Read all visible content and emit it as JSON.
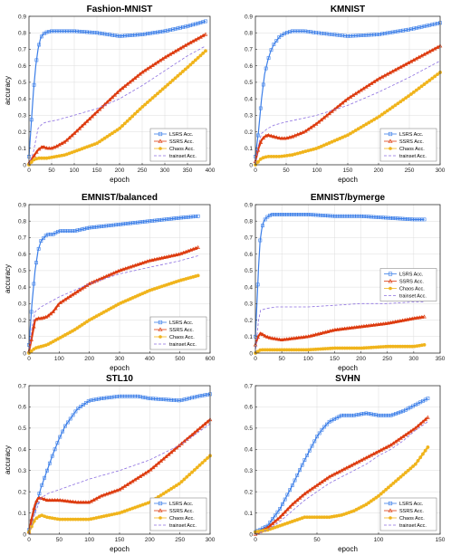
{
  "colors": {
    "lsrs": "#3b7ee8",
    "ssrs": "#dd3b0f",
    "chaos": "#f0b41c",
    "trainset": "#8c6fe0",
    "grid": "#dcdcdc",
    "axis": "#333333"
  },
  "legend_labels": [
    "LSRS Acc.",
    "SSRS Acc.",
    "Chaos Acc.",
    "trainset Acc."
  ],
  "chart_data": [
    {
      "type": "line",
      "title": "Fashion-MNIST",
      "xlabel": "epoch",
      "ylabel": "accuracy",
      "xlim": [
        0,
        400
      ],
      "ylim": [
        0,
        0.9
      ],
      "xticks": [
        0,
        50,
        100,
        150,
        200,
        250,
        300,
        350,
        400
      ],
      "yticks": [
        0,
        0.1,
        0.2,
        0.3,
        0.4,
        0.5,
        0.6,
        0.7,
        0.8,
        0.9
      ],
      "grid": true,
      "legend_position": "lower-right",
      "series": [
        {
          "name": "LSRS Acc.",
          "color_key": "lsrs",
          "marker": "square",
          "x": [
            0,
            5,
            10,
            15,
            20,
            25,
            30,
            40,
            50,
            60,
            70,
            80,
            100,
            150,
            200,
            250,
            300,
            350,
            390
          ],
          "y": [
            0.05,
            0.25,
            0.45,
            0.6,
            0.7,
            0.76,
            0.79,
            0.805,
            0.81,
            0.81,
            0.81,
            0.81,
            0.81,
            0.8,
            0.78,
            0.79,
            0.81,
            0.84,
            0.87
          ]
        },
        {
          "name": "SSRS Acc.",
          "color_key": "ssrs",
          "marker": "triangle",
          "x": [
            0,
            10,
            20,
            30,
            40,
            50,
            60,
            80,
            100,
            150,
            200,
            250,
            300,
            350,
            390
          ],
          "y": [
            0.01,
            0.05,
            0.09,
            0.11,
            0.1,
            0.1,
            0.11,
            0.14,
            0.19,
            0.32,
            0.45,
            0.56,
            0.65,
            0.73,
            0.79
          ]
        },
        {
          "name": "Chaos Acc.",
          "color_key": "chaos",
          "marker": "star",
          "x": [
            0,
            10,
            20,
            40,
            60,
            80,
            100,
            150,
            200,
            250,
            300,
            350,
            390
          ],
          "y": [
            0.0,
            0.03,
            0.04,
            0.04,
            0.05,
            0.06,
            0.08,
            0.13,
            0.22,
            0.35,
            0.47,
            0.59,
            0.69
          ]
        },
        {
          "name": "trainset Acc.",
          "color_key": "trainset",
          "marker": "dash",
          "x": [
            0,
            10,
            20,
            30,
            40,
            60,
            100,
            150,
            200,
            250,
            300,
            350,
            390
          ],
          "y": [
            0.0,
            0.08,
            0.22,
            0.25,
            0.26,
            0.27,
            0.3,
            0.34,
            0.4,
            0.48,
            0.57,
            0.66,
            0.72
          ]
        }
      ]
    },
    {
      "type": "line",
      "title": "KMNIST",
      "xlabel": "epoch",
      "ylabel": "",
      "xlim": [
        0,
        300
      ],
      "ylim": [
        0,
        0.9
      ],
      "xticks": [
        0,
        50,
        100,
        150,
        200,
        250,
        300
      ],
      "yticks": [
        0,
        0.1,
        0.2,
        0.3,
        0.4,
        0.5,
        0.6,
        0.7,
        0.8,
        0.9
      ],
      "grid": true,
      "legend_position": "lower-right",
      "series": [
        {
          "name": "LSRS Acc.",
          "color_key": "lsrs",
          "marker": "square",
          "x": [
            0,
            5,
            10,
            15,
            20,
            25,
            30,
            40,
            50,
            60,
            70,
            80,
            100,
            150,
            200,
            250,
            300
          ],
          "y": [
            0.05,
            0.2,
            0.4,
            0.55,
            0.63,
            0.69,
            0.73,
            0.78,
            0.8,
            0.81,
            0.81,
            0.81,
            0.8,
            0.78,
            0.79,
            0.82,
            0.86
          ]
        },
        {
          "name": "SSRS Acc.",
          "color_key": "ssrs",
          "marker": "triangle",
          "x": [
            0,
            5,
            10,
            15,
            20,
            30,
            40,
            50,
            60,
            80,
            100,
            150,
            200,
            250,
            300
          ],
          "y": [
            0.02,
            0.1,
            0.15,
            0.17,
            0.18,
            0.17,
            0.16,
            0.16,
            0.17,
            0.2,
            0.25,
            0.4,
            0.52,
            0.62,
            0.72
          ]
        },
        {
          "name": "Chaos Acc.",
          "color_key": "chaos",
          "marker": "star",
          "x": [
            0,
            10,
            20,
            40,
            60,
            80,
            100,
            150,
            200,
            250,
            300
          ],
          "y": [
            0.0,
            0.04,
            0.05,
            0.05,
            0.06,
            0.08,
            0.1,
            0.18,
            0.29,
            0.42,
            0.56
          ]
        },
        {
          "name": "trainset Acc.",
          "color_key": "trainset",
          "marker": "dash",
          "x": [
            0,
            5,
            10,
            20,
            30,
            50,
            100,
            150,
            200,
            250,
            300
          ],
          "y": [
            0.0,
            0.12,
            0.19,
            0.22,
            0.24,
            0.26,
            0.3,
            0.36,
            0.44,
            0.53,
            0.63
          ]
        }
      ]
    },
    {
      "type": "line",
      "title": "EMNIST/balanced",
      "xlabel": "epoch",
      "ylabel": "accuracy",
      "xlim": [
        0,
        600
      ],
      "ylim": [
        0,
        0.9
      ],
      "xticks": [
        0,
        100,
        200,
        300,
        400,
        500,
        600
      ],
      "yticks": [
        0,
        0.1,
        0.2,
        0.3,
        0.4,
        0.5,
        0.6,
        0.7,
        0.8,
        0.9
      ],
      "grid": true,
      "legend_position": "lower-right",
      "series": [
        {
          "name": "LSRS Acc.",
          "color_key": "lsrs",
          "marker": "square",
          "x": [
            0,
            10,
            20,
            30,
            40,
            50,
            60,
            80,
            100,
            150,
            200,
            300,
            400,
            500,
            560
          ],
          "y": [
            0.05,
            0.3,
            0.5,
            0.62,
            0.68,
            0.7,
            0.72,
            0.72,
            0.74,
            0.74,
            0.76,
            0.78,
            0.8,
            0.82,
            0.83
          ]
        },
        {
          "name": "SSRS Acc.",
          "color_key": "ssrs",
          "marker": "triangle",
          "x": [
            0,
            10,
            20,
            30,
            40,
            60,
            80,
            100,
            150,
            200,
            250,
            300,
            400,
            500,
            560
          ],
          "y": [
            0.01,
            0.1,
            0.2,
            0.21,
            0.21,
            0.22,
            0.25,
            0.3,
            0.36,
            0.42,
            0.46,
            0.5,
            0.56,
            0.6,
            0.64
          ]
        },
        {
          "name": "Chaos Acc.",
          "color_key": "chaos",
          "marker": "star",
          "x": [
            0,
            20,
            40,
            60,
            80,
            100,
            150,
            200,
            300,
            400,
            500,
            560
          ],
          "y": [
            0.0,
            0.03,
            0.04,
            0.05,
            0.07,
            0.09,
            0.14,
            0.2,
            0.3,
            0.38,
            0.44,
            0.47
          ]
        },
        {
          "name": "trainset Acc.",
          "color_key": "trainset",
          "marker": "dash",
          "x": [
            0,
            10,
            20,
            40,
            60,
            100,
            200,
            300,
            400,
            500,
            560
          ],
          "y": [
            0.0,
            0.15,
            0.25,
            0.28,
            0.3,
            0.34,
            0.42,
            0.48,
            0.52,
            0.56,
            0.59
          ]
        }
      ]
    },
    {
      "type": "line",
      "title": "EMNIST/bymerge",
      "xlabel": "epoch",
      "ylabel": "",
      "xlim": [
        0,
        350
      ],
      "ylim": [
        0,
        0.9
      ],
      "xticks": [
        0,
        50,
        100,
        150,
        200,
        250,
        300,
        350
      ],
      "yticks": [
        0,
        0.1,
        0.2,
        0.3,
        0.4,
        0.5,
        0.6,
        0.7,
        0.8,
        0.9
      ],
      "grid": true,
      "legend_position": "center-right",
      "series": [
        {
          "name": "LSRS Acc.",
          "color_key": "lsrs",
          "marker": "square",
          "x": [
            0,
            3,
            6,
            9,
            12,
            15,
            20,
            25,
            30,
            50,
            100,
            150,
            200,
            250,
            300,
            320
          ],
          "y": [
            0.1,
            0.3,
            0.52,
            0.68,
            0.75,
            0.79,
            0.82,
            0.83,
            0.84,
            0.84,
            0.84,
            0.83,
            0.83,
            0.82,
            0.81,
            0.81
          ]
        },
        {
          "name": "SSRS Acc.",
          "color_key": "ssrs",
          "marker": "triangle",
          "x": [
            0,
            5,
            10,
            20,
            30,
            50,
            100,
            150,
            200,
            250,
            300,
            320
          ],
          "y": [
            0.05,
            0.1,
            0.12,
            0.1,
            0.09,
            0.08,
            0.1,
            0.14,
            0.16,
            0.18,
            0.21,
            0.22
          ]
        },
        {
          "name": "Chaos Acc.",
          "color_key": "chaos",
          "marker": "star",
          "x": [
            0,
            10,
            20,
            50,
            100,
            150,
            200,
            250,
            300,
            320
          ],
          "y": [
            0.0,
            0.02,
            0.02,
            0.02,
            0.02,
            0.03,
            0.03,
            0.04,
            0.04,
            0.05
          ]
        },
        {
          "name": "trainset Acc.",
          "color_key": "trainset",
          "marker": "dash",
          "x": [
            0,
            3,
            6,
            10,
            20,
            40,
            100,
            150,
            200,
            250,
            300,
            320
          ],
          "y": [
            0.0,
            0.1,
            0.2,
            0.26,
            0.27,
            0.28,
            0.28,
            0.29,
            0.3,
            0.3,
            0.31,
            0.31
          ]
        }
      ]
    },
    {
      "type": "line",
      "title": "STL10",
      "xlabel": "epoch",
      "ylabel": "accuracy",
      "xlim": [
        0,
        300
      ],
      "ylim": [
        0,
        0.7
      ],
      "xticks": [
        0,
        50,
        100,
        150,
        200,
        250,
        300
      ],
      "yticks": [
        0,
        0.1,
        0.2,
        0.3,
        0.4,
        0.5,
        0.6,
        0.7
      ],
      "grid": true,
      "legend_position": "lower-right",
      "series": [
        {
          "name": "LSRS Acc.",
          "color_key": "lsrs",
          "marker": "square",
          "x": [
            0,
            10,
            20,
            30,
            40,
            50,
            60,
            70,
            80,
            90,
            100,
            120,
            150,
            180,
            200,
            250,
            280,
            300
          ],
          "y": [
            0.02,
            0.12,
            0.22,
            0.3,
            0.38,
            0.45,
            0.51,
            0.55,
            0.59,
            0.61,
            0.63,
            0.64,
            0.65,
            0.65,
            0.64,
            0.63,
            0.65,
            0.66
          ]
        },
        {
          "name": "SSRS Acc.",
          "color_key": "ssrs",
          "marker": "triangle",
          "x": [
            0,
            5,
            10,
            15,
            20,
            30,
            50,
            80,
            100,
            120,
            150,
            200,
            250,
            300
          ],
          "y": [
            0.01,
            0.08,
            0.14,
            0.17,
            0.17,
            0.16,
            0.16,
            0.15,
            0.15,
            0.18,
            0.21,
            0.3,
            0.42,
            0.54
          ]
        },
        {
          "name": "Chaos Acc.",
          "color_key": "chaos",
          "marker": "star",
          "x": [
            0,
            10,
            20,
            30,
            50,
            80,
            100,
            150,
            200,
            250,
            300
          ],
          "y": [
            0.01,
            0.07,
            0.09,
            0.08,
            0.07,
            0.07,
            0.07,
            0.1,
            0.15,
            0.24,
            0.37
          ]
        },
        {
          "name": "trainset Acc.",
          "color_key": "trainset",
          "marker": "dash",
          "x": [
            0,
            10,
            20,
            30,
            40,
            60,
            100,
            150,
            200,
            250,
            300
          ],
          "y": [
            0.0,
            0.1,
            0.17,
            0.19,
            0.2,
            0.22,
            0.26,
            0.3,
            0.35,
            0.42,
            0.52
          ]
        }
      ]
    },
    {
      "type": "line",
      "title": "SVHN",
      "xlabel": "epoch",
      "ylabel": "",
      "xlim": [
        0,
        150
      ],
      "ylim": [
        0,
        0.7
      ],
      "xticks": [
        0,
        50,
        100,
        150
      ],
      "yticks": [
        0,
        0.1,
        0.2,
        0.3,
        0.4,
        0.5,
        0.6,
        0.7
      ],
      "grid": true,
      "legend_position": "lower-right",
      "series": [
        {
          "name": "LSRS Acc.",
          "color_key": "lsrs",
          "marker": "square",
          "x": [
            0,
            10,
            20,
            30,
            40,
            50,
            55,
            60,
            70,
            80,
            90,
            100,
            110,
            120,
            130,
            140
          ],
          "y": [
            0.01,
            0.04,
            0.12,
            0.23,
            0.35,
            0.46,
            0.5,
            0.53,
            0.56,
            0.56,
            0.57,
            0.56,
            0.56,
            0.58,
            0.61,
            0.64
          ]
        },
        {
          "name": "SSRS Acc.",
          "color_key": "ssrs",
          "marker": "triangle",
          "x": [
            0,
            10,
            20,
            30,
            40,
            50,
            60,
            70,
            80,
            90,
            100,
            110,
            120,
            130,
            140
          ],
          "y": [
            0.0,
            0.03,
            0.08,
            0.14,
            0.19,
            0.23,
            0.27,
            0.3,
            0.33,
            0.36,
            0.39,
            0.42,
            0.46,
            0.5,
            0.55
          ]
        },
        {
          "name": "Chaos Acc.",
          "color_key": "chaos",
          "marker": "star",
          "x": [
            0,
            10,
            20,
            30,
            40,
            50,
            60,
            70,
            80,
            90,
            100,
            110,
            120,
            130,
            140
          ],
          "y": [
            0.01,
            0.02,
            0.04,
            0.06,
            0.08,
            0.08,
            0.08,
            0.09,
            0.11,
            0.14,
            0.18,
            0.23,
            0.28,
            0.33,
            0.41
          ]
        },
        {
          "name": "trainset Acc.",
          "color_key": "trainset",
          "marker": "dash",
          "x": [
            0,
            10,
            20,
            30,
            40,
            50,
            60,
            70,
            80,
            90,
            100,
            110,
            120,
            130,
            140
          ],
          "y": [
            0.0,
            0.02,
            0.06,
            0.11,
            0.16,
            0.2,
            0.24,
            0.27,
            0.3,
            0.33,
            0.37,
            0.4,
            0.44,
            0.49,
            0.53
          ]
        }
      ]
    }
  ]
}
